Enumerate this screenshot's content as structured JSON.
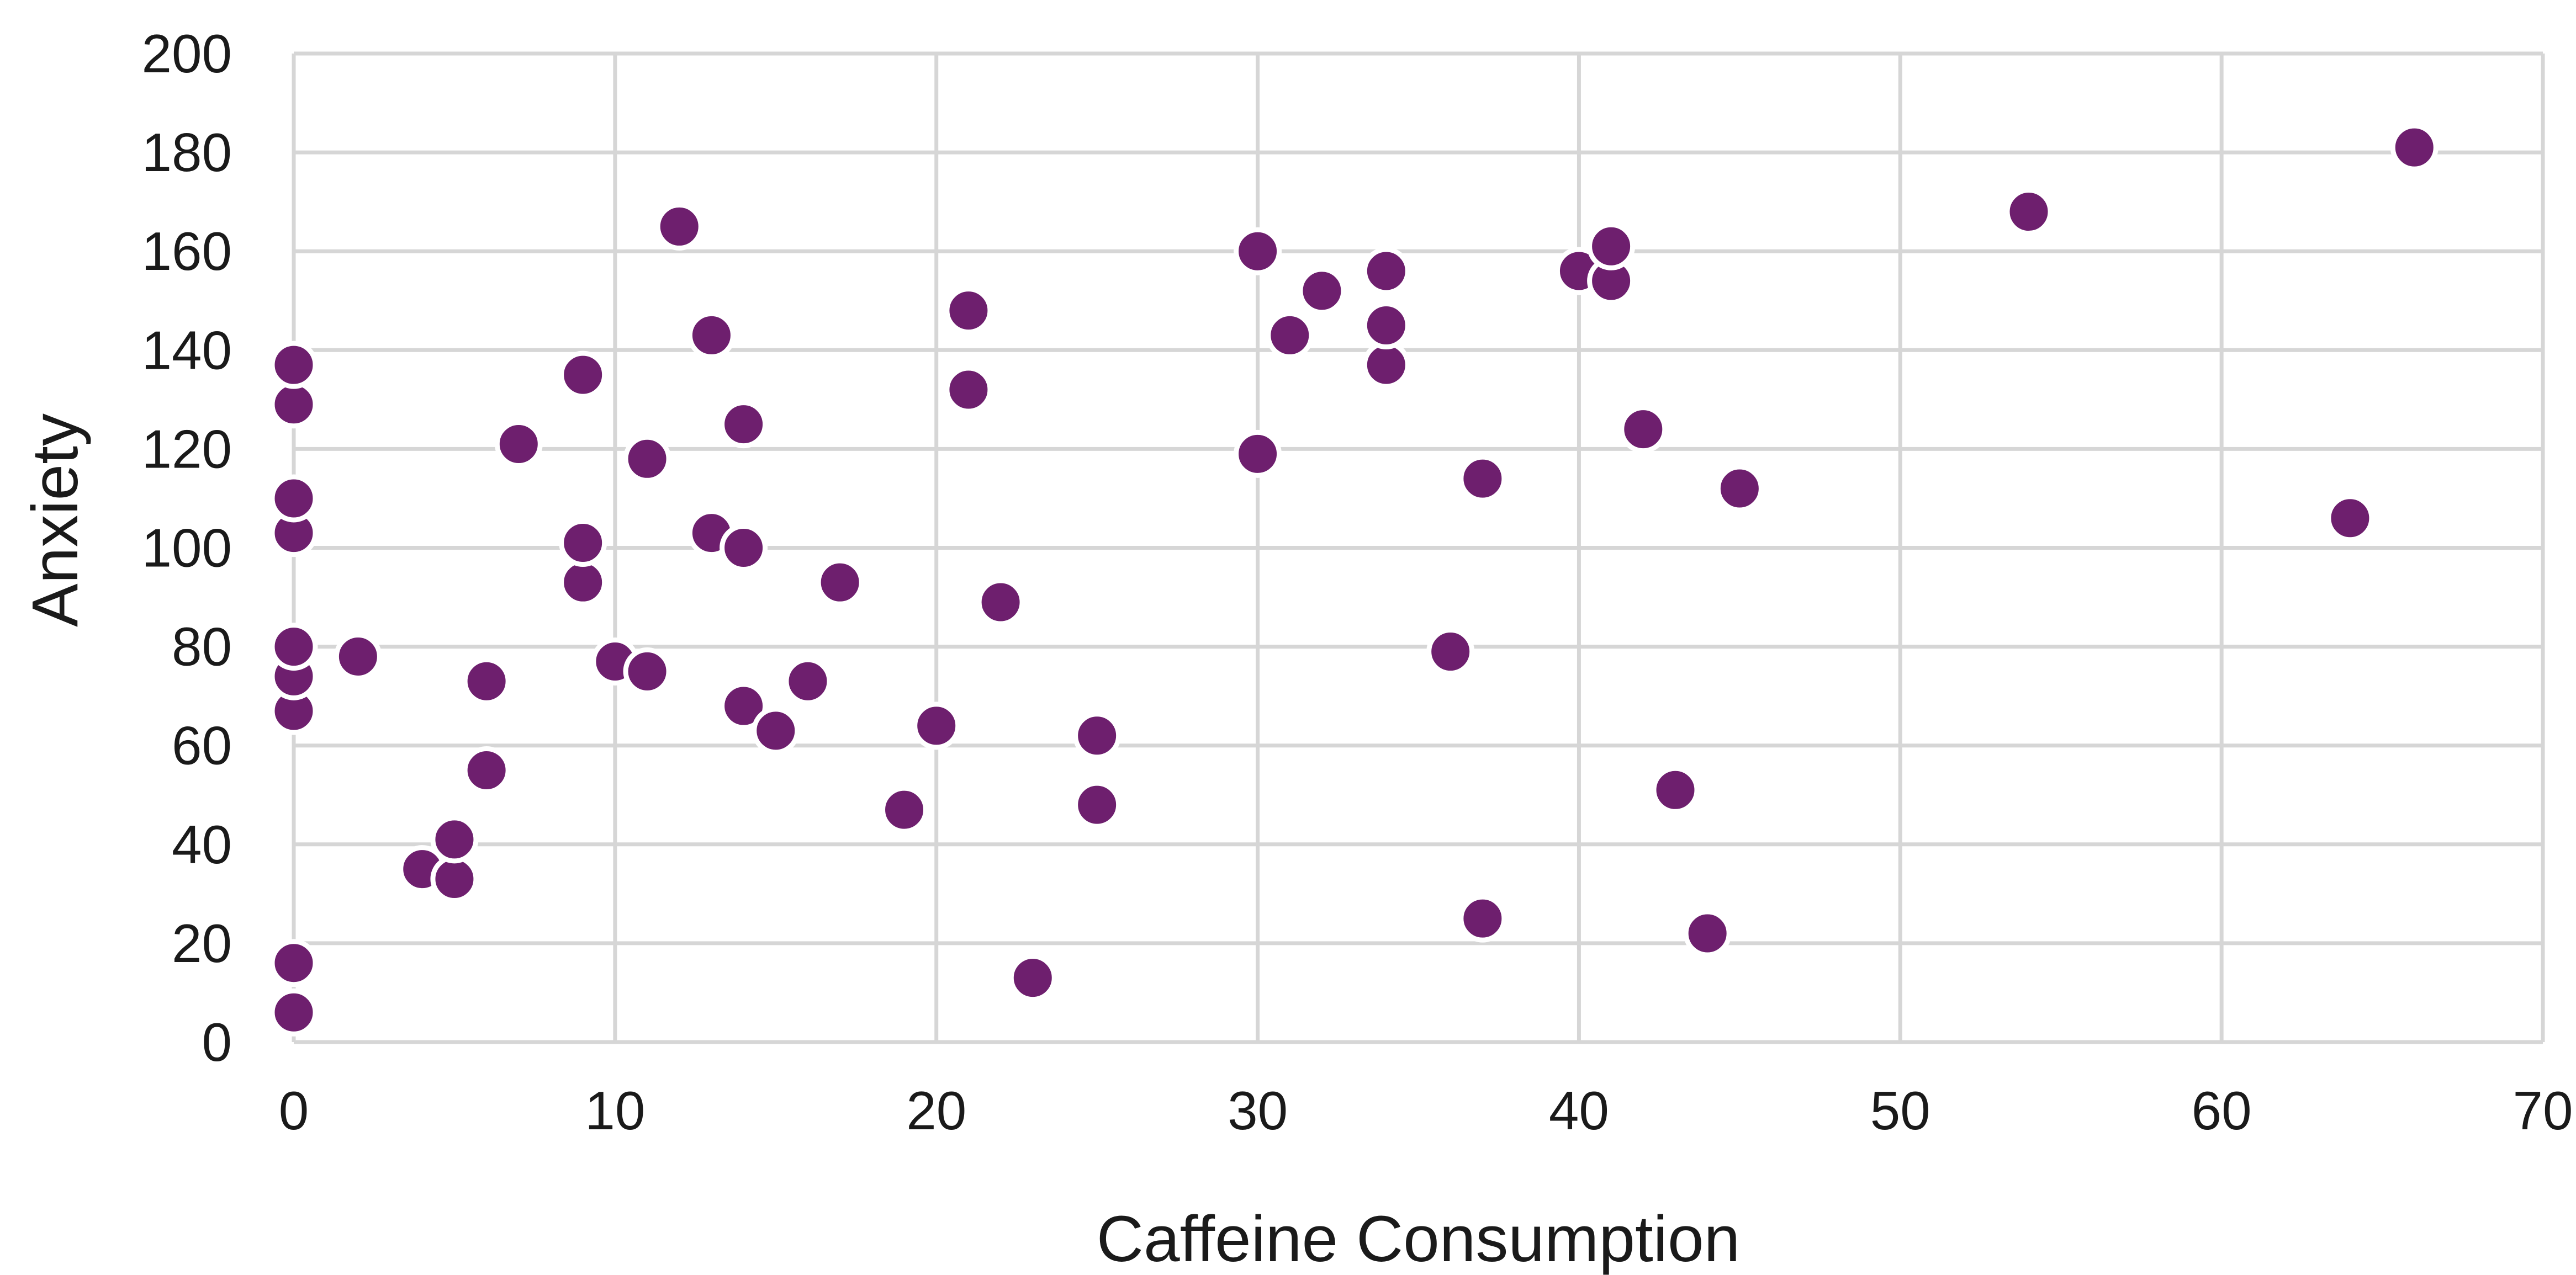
{
  "chart_data": {
    "type": "scatter",
    "title": "",
    "xlabel": "Caffeine Consumption",
    "ylabel": "Anxiety",
    "xlim": [
      0,
      70
    ],
    "ylim": [
      0,
      200
    ],
    "xticks": [
      0,
      10,
      20,
      30,
      40,
      50,
      60,
      70
    ],
    "yticks": [
      0,
      20,
      40,
      60,
      80,
      100,
      120,
      140,
      160,
      180,
      200
    ],
    "grid": true,
    "legend": "none",
    "marker_color": "#6e1f6e",
    "points": [
      {
        "x": 0,
        "y": 6
      },
      {
        "x": 0,
        "y": 16
      },
      {
        "x": 0,
        "y": 67
      },
      {
        "x": 0,
        "y": 74
      },
      {
        "x": 0,
        "y": 80
      },
      {
        "x": 0,
        "y": 103
      },
      {
        "x": 0,
        "y": 110
      },
      {
        "x": 0,
        "y": 129
      },
      {
        "x": 0,
        "y": 137
      },
      {
        "x": 2,
        "y": 78
      },
      {
        "x": 4,
        "y": 35
      },
      {
        "x": 5,
        "y": 33
      },
      {
        "x": 5,
        "y": 41
      },
      {
        "x": 6,
        "y": 55
      },
      {
        "x": 6,
        "y": 73
      },
      {
        "x": 7,
        "y": 121
      },
      {
        "x": 9,
        "y": 93
      },
      {
        "x": 9,
        "y": 101
      },
      {
        "x": 9,
        "y": 135
      },
      {
        "x": 10,
        "y": 77
      },
      {
        "x": 11,
        "y": 75
      },
      {
        "x": 11,
        "y": 118
      },
      {
        "x": 12,
        "y": 165
      },
      {
        "x": 13,
        "y": 103
      },
      {
        "x": 13,
        "y": 143
      },
      {
        "x": 14,
        "y": 68
      },
      {
        "x": 14,
        "y": 100
      },
      {
        "x": 14,
        "y": 125
      },
      {
        "x": 15,
        "y": 63
      },
      {
        "x": 16,
        "y": 73
      },
      {
        "x": 17,
        "y": 93
      },
      {
        "x": 19,
        "y": 47
      },
      {
        "x": 20,
        "y": 64
      },
      {
        "x": 21,
        "y": 132
      },
      {
        "x": 21,
        "y": 148
      },
      {
        "x": 22,
        "y": 89
      },
      {
        "x": 23,
        "y": 13
      },
      {
        "x": 25,
        "y": 48
      },
      {
        "x": 25,
        "y": 62
      },
      {
        "x": 30,
        "y": 119
      },
      {
        "x": 30,
        "y": 160
      },
      {
        "x": 31,
        "y": 143
      },
      {
        "x": 32,
        "y": 152
      },
      {
        "x": 34,
        "y": 137
      },
      {
        "x": 34,
        "y": 145
      },
      {
        "x": 34,
        "y": 156
      },
      {
        "x": 36,
        "y": 79
      },
      {
        "x": 37,
        "y": 25
      },
      {
        "x": 37,
        "y": 114
      },
      {
        "x": 40,
        "y": 156
      },
      {
        "x": 41,
        "y": 154
      },
      {
        "x": 41,
        "y": 161
      },
      {
        "x": 42,
        "y": 124
      },
      {
        "x": 43,
        "y": 51
      },
      {
        "x": 44,
        "y": 22
      },
      {
        "x": 45,
        "y": 112
      },
      {
        "x": 54,
        "y": 168
      },
      {
        "x": 64,
        "y": 106
      },
      {
        "x": 66,
        "y": 181
      }
    ]
  }
}
